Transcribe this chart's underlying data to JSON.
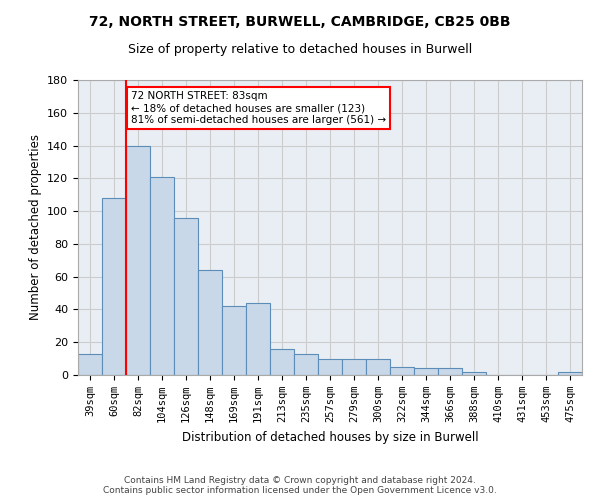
{
  "title_line1": "72, NORTH STREET, BURWELL, CAMBRIDGE, CB25 0BB",
  "title_line2": "Size of property relative to detached houses in Burwell",
  "xlabel": "Distribution of detached houses by size in Burwell",
  "ylabel": "Number of detached properties",
  "categories": [
    "39sqm",
    "60sqm",
    "82sqm",
    "104sqm",
    "126sqm",
    "148sqm",
    "169sqm",
    "191sqm",
    "213sqm",
    "235sqm",
    "257sqm",
    "279sqm",
    "300sqm",
    "322sqm",
    "344sqm",
    "366sqm",
    "388sqm",
    "410sqm",
    "431sqm",
    "453sqm",
    "475sqm"
  ],
  "values": [
    13,
    108,
    140,
    121,
    96,
    64,
    42,
    44,
    16,
    13,
    10,
    10,
    10,
    5,
    4,
    4,
    2,
    0,
    0,
    0,
    2
  ],
  "bar_color": "#c8d8e8",
  "bar_edge_color": "#5b8db8",
  "annotation_text": "72 NORTH STREET: 83sqm\n← 18% of detached houses are smaller (123)\n81% of semi-detached houses are larger (561) →",
  "annotation_box_color": "white",
  "annotation_box_edge_color": "red",
  "vline_color": "red",
  "vline_x": 1.5,
  "ylim": [
    0,
    180
  ],
  "yticks": [
    0,
    20,
    40,
    60,
    80,
    100,
    120,
    140,
    160,
    180
  ],
  "grid_color": "#cccccc",
  "background_color": "#e8eef4",
  "footer_line1": "Contains HM Land Registry data © Crown copyright and database right 2024.",
  "footer_line2": "Contains public sector information licensed under the Open Government Licence v3.0."
}
